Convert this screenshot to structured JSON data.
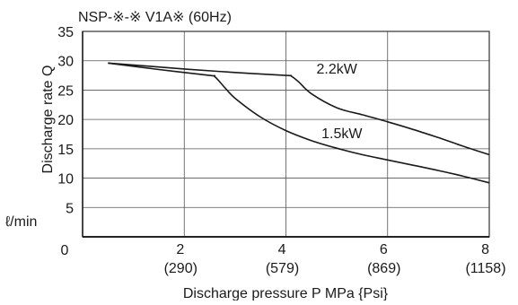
{
  "chart_data": {
    "type": "line",
    "title": "NSP-※-※ V1A※   (60Hz)",
    "xlabel": "Discharge pressure P MPa {Psi}",
    "ylabel": "Discharge rate Q",
    "yunit": "ℓ/min",
    "xlim": [
      0,
      8
    ],
    "ylim": [
      0,
      35
    ],
    "grid": true,
    "x_ticks": [
      {
        "value": 2,
        "label": "2",
        "sublabel": "(290)"
      },
      {
        "value": 4,
        "label": "4",
        "sublabel": "(579)"
      },
      {
        "value": 6,
        "label": "6",
        "sublabel": "(869)"
      },
      {
        "value": 8,
        "label": "8",
        "sublabel": "(1158)"
      }
    ],
    "x_origin_label": "0",
    "y_ticks": [
      {
        "value": 5,
        "label": "5"
      },
      {
        "value": 10,
        "label": "10"
      },
      {
        "value": 15,
        "label": "15"
      },
      {
        "value": 20,
        "label": "20"
      },
      {
        "value": 25,
        "label": "25"
      },
      {
        "value": 30,
        "label": "30"
      },
      {
        "value": 35,
        "label": "35"
      }
    ],
    "series": [
      {
        "name": "2.2kW",
        "label_at": [
          4.6,
          27.8
        ],
        "points": [
          [
            0.5,
            29.6
          ],
          [
            2.0,
            28.6
          ],
          [
            3.0,
            28.0
          ],
          [
            4.0,
            27.5
          ],
          [
            4.1,
            27.4
          ],
          [
            4.25,
            26.4
          ],
          [
            4.5,
            24.4
          ],
          [
            5.0,
            22.0
          ],
          [
            5.5,
            20.8
          ],
          [
            6.0,
            19.6
          ],
          [
            6.5,
            18.3
          ],
          [
            7.0,
            16.9
          ],
          [
            7.5,
            15.4
          ],
          [
            8.0,
            14.0
          ]
        ]
      },
      {
        "name": "1.5kW",
        "label_at": [
          4.7,
          16.8
        ],
        "points": [
          [
            0.5,
            29.6
          ],
          [
            1.5,
            28.5
          ],
          [
            2.5,
            27.5
          ],
          [
            2.6,
            27.3
          ],
          [
            2.8,
            25.4
          ],
          [
            3.0,
            23.6
          ],
          [
            3.5,
            20.4
          ],
          [
            4.0,
            18.1
          ],
          [
            4.5,
            16.4
          ],
          [
            5.0,
            15.1
          ],
          [
            5.5,
            14.0
          ],
          [
            6.0,
            13.1
          ],
          [
            6.5,
            12.2
          ],
          [
            7.0,
            11.3
          ],
          [
            7.5,
            10.3
          ],
          [
            8.0,
            9.2
          ]
        ]
      }
    ]
  }
}
